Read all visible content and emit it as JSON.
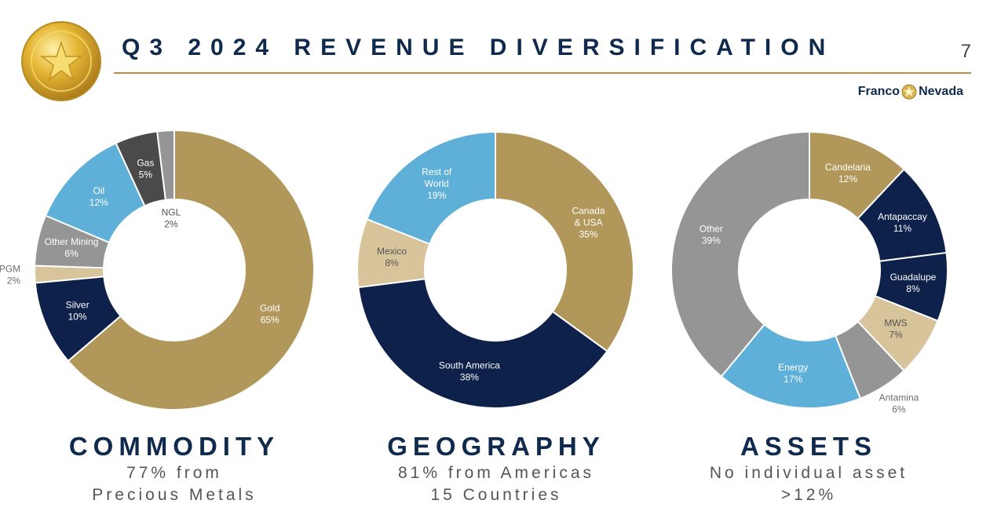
{
  "header": {
    "title": "Q3 2024 REVENUE DIVERSIFICATION",
    "page_number": "7",
    "brand_left": "Franco",
    "brand_right": "Nevada",
    "coin_text_top": "Franco-Nevada"
  },
  "colors": {
    "gold": "#b2975a",
    "navy": "#0d214a",
    "light_blue": "#5eb0d8",
    "gray": "#959595",
    "dark_gray": "#4a4a4a",
    "tan": "#d8c49a",
    "rule": "#b38f4e"
  },
  "captions": [
    {
      "heading": "COMMODITY",
      "line1": "77% from",
      "line2": "Precious Metals"
    },
    {
      "heading": "GEOGRAPHY",
      "line1": "81% from Americas",
      "line2": "15 Countries"
    },
    {
      "heading": "ASSETS",
      "line1": "No individual asset",
      "line2": ">12%"
    }
  ],
  "chart_data": [
    {
      "type": "pie",
      "title": "COMMODITY",
      "slices": [
        {
          "name": "Gold",
          "value": 65,
          "label": "65%",
          "color": "#b2975a"
        },
        {
          "name": "Silver",
          "value": 10,
          "label": "10%",
          "color": "#0d214a"
        },
        {
          "name": "PGM",
          "value": 2,
          "label": "2%",
          "color": "#d8c49a"
        },
        {
          "name": "Other Mining",
          "value": 6,
          "label": "6%",
          "color": "#959595"
        },
        {
          "name": "Oil",
          "value": 12,
          "label": "12%",
          "color": "#5eb0d8"
        },
        {
          "name": "Gas",
          "value": 5,
          "label": "5%",
          "color": "#4a4a4a"
        },
        {
          "name": "NGL",
          "value": 2,
          "label": "2%",
          "color": "#959595"
        }
      ]
    },
    {
      "type": "pie",
      "title": "GEOGRAPHY",
      "slices": [
        {
          "name": "Canada & USA",
          "value": 35,
          "label": "35%",
          "color": "#b2975a"
        },
        {
          "name": "South America",
          "value": 38,
          "label": "38%",
          "color": "#0d214a"
        },
        {
          "name": "Mexico",
          "value": 8,
          "label": "8%",
          "color": "#d8c49a"
        },
        {
          "name": "Rest of World",
          "value": 19,
          "label": "19%",
          "color": "#5eb0d8"
        }
      ]
    },
    {
      "type": "pie",
      "title": "ASSETS",
      "slices": [
        {
          "name": "Candelaria",
          "value": 12,
          "label": "12%",
          "color": "#b2975a"
        },
        {
          "name": "Antapaccay",
          "value": 11,
          "label": "11%",
          "color": "#0d214a"
        },
        {
          "name": "Guadalupe",
          "value": 8,
          "label": "8%",
          "color": "#0d214a"
        },
        {
          "name": "MWS",
          "value": 7,
          "label": "7%",
          "color": "#d8c49a"
        },
        {
          "name": "Antamina",
          "value": 6,
          "label": "6%",
          "color": "#959595"
        },
        {
          "name": "Energy",
          "value": 17,
          "label": "17%",
          "color": "#5eb0d8"
        },
        {
          "name": "Other",
          "value": 39,
          "label": "39%",
          "color": "#959595"
        }
      ]
    }
  ]
}
